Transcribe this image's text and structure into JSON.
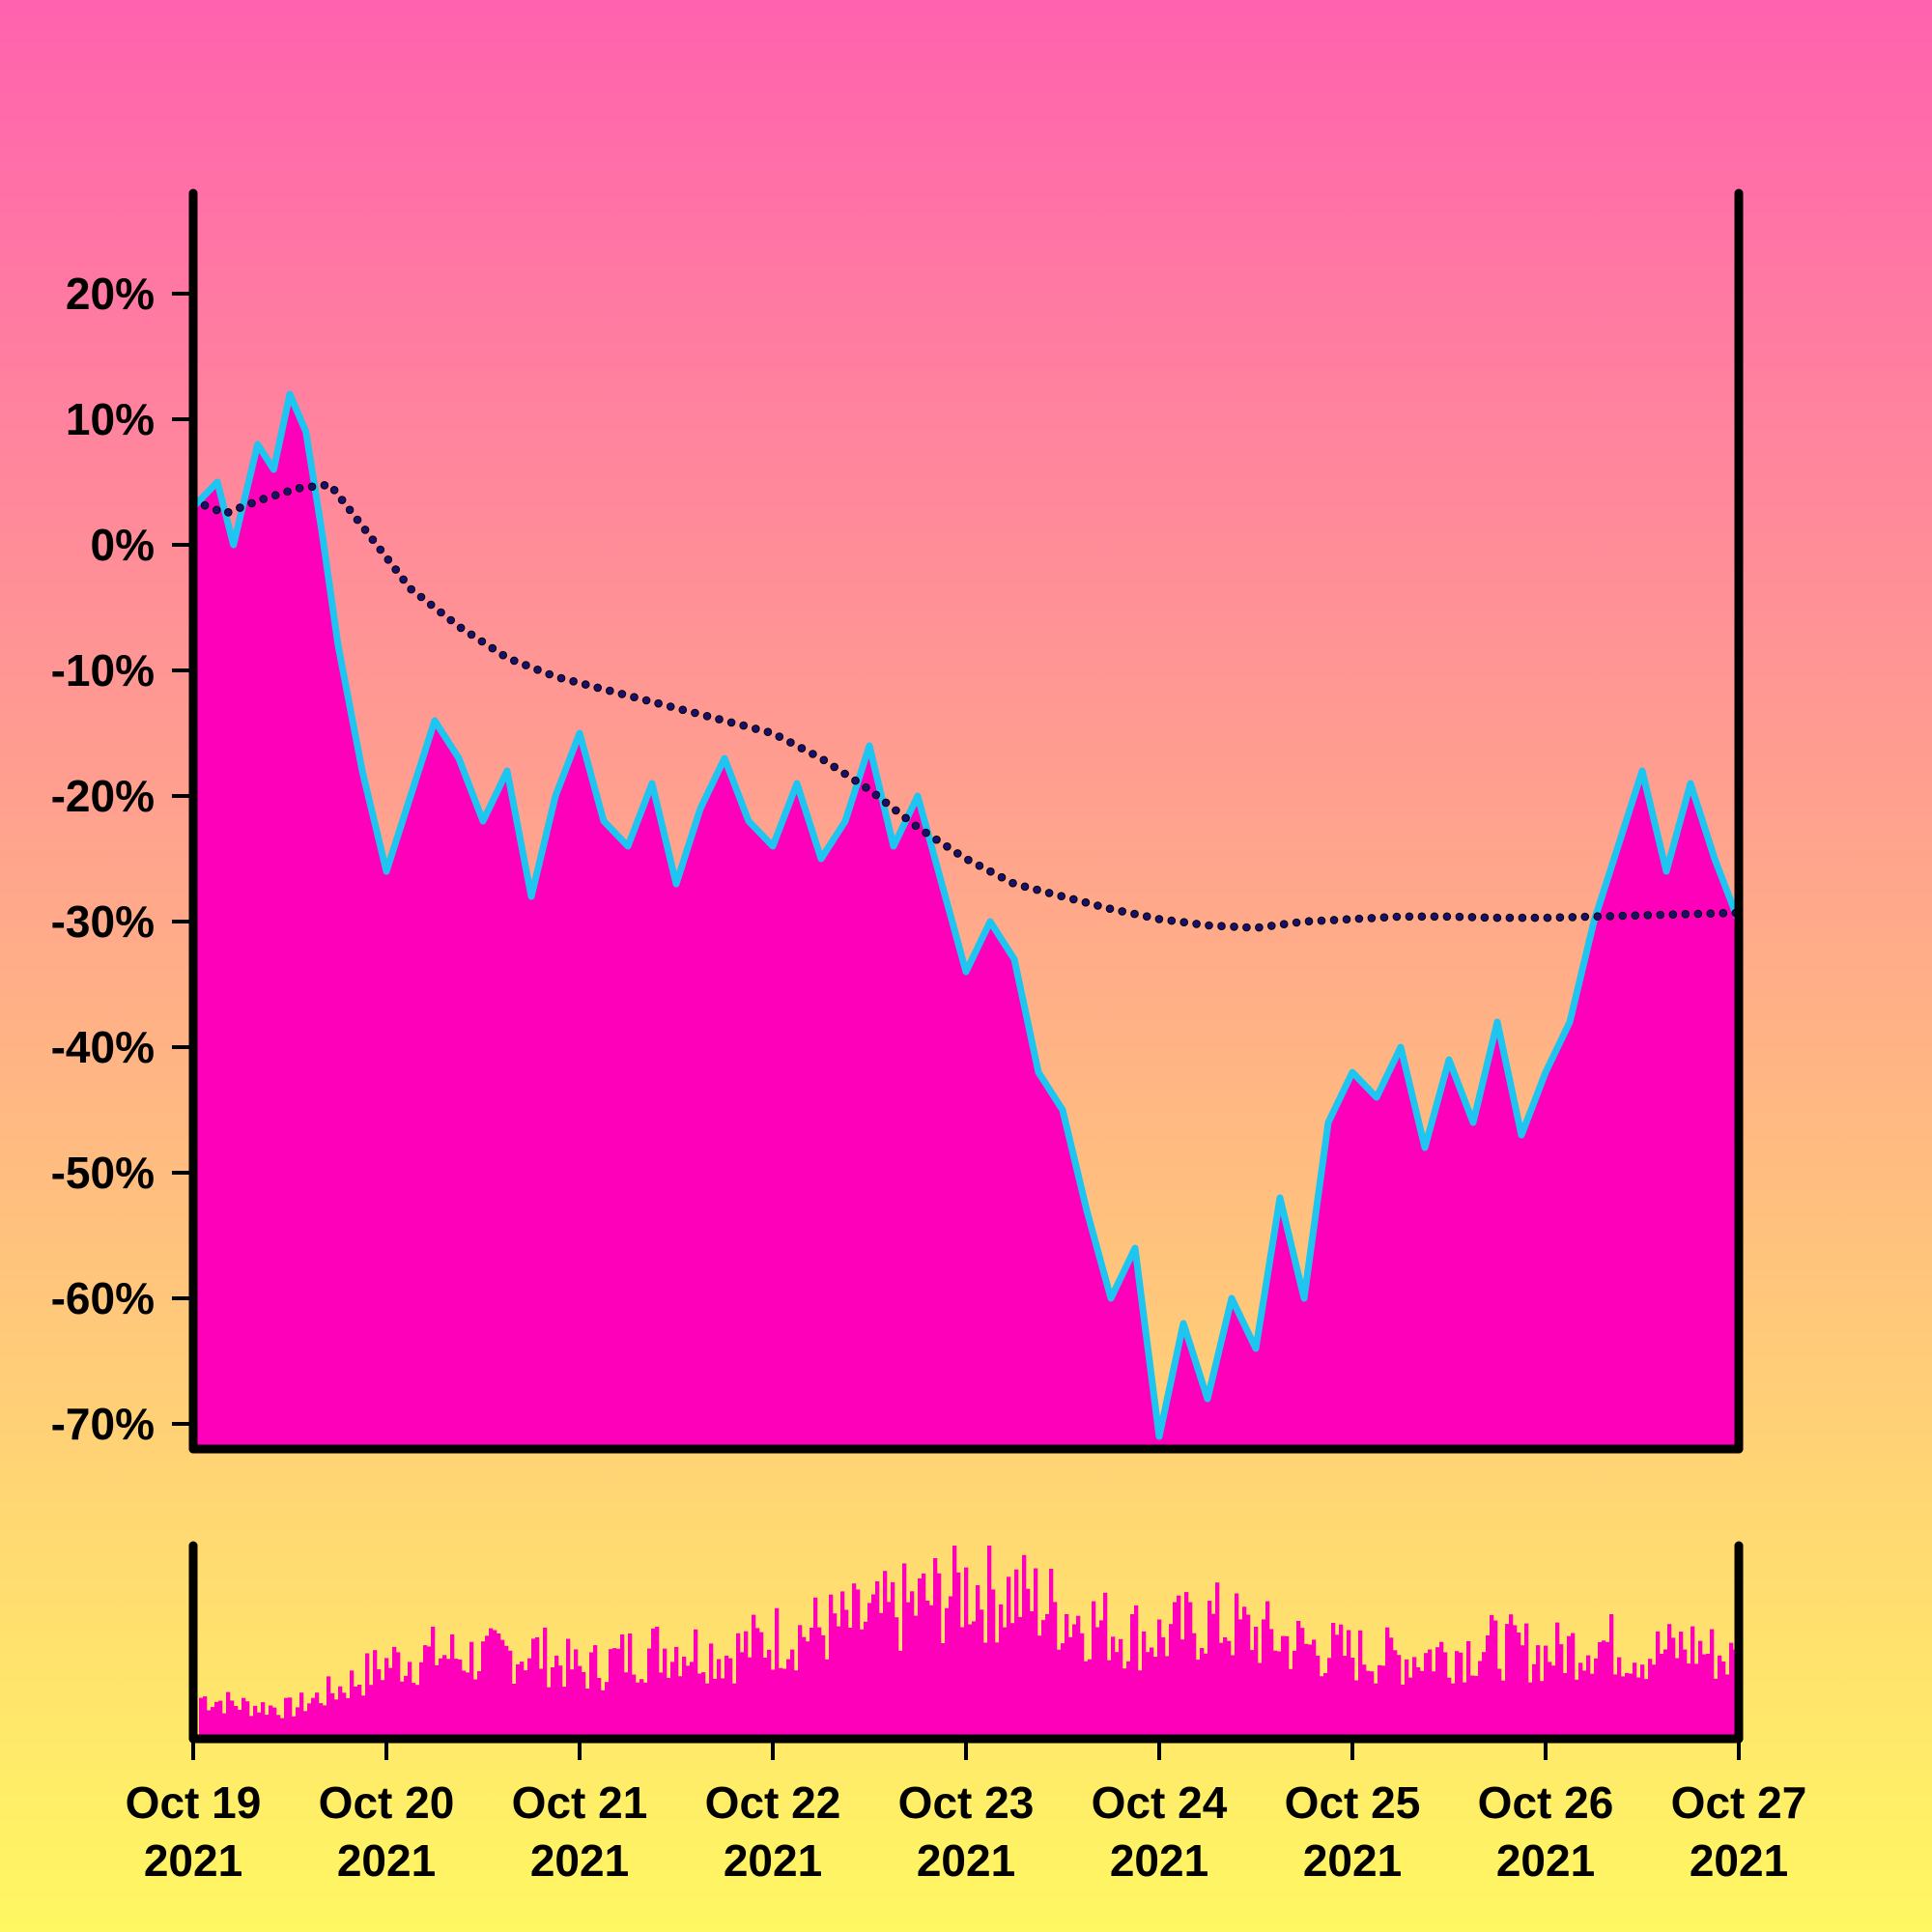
{
  "chart_data": {
    "type": "area",
    "title": "",
    "xlabel": "",
    "ylabel": "",
    "y_unit": "%",
    "ylim": [
      -72,
      28
    ],
    "yticks": [
      {
        "value": 20,
        "label": "20%"
      },
      {
        "value": 10,
        "label": "10%"
      },
      {
        "value": 0,
        "label": "0%"
      },
      {
        "value": -10,
        "label": "-10%"
      },
      {
        "value": -20,
        "label": "-20%"
      },
      {
        "value": -30,
        "label": "-30%"
      },
      {
        "value": -40,
        "label": "-40%"
      },
      {
        "value": -50,
        "label": "-50%"
      },
      {
        "value": -60,
        "label": "-60%"
      },
      {
        "value": -70,
        "label": "-70%"
      }
    ],
    "xlim": [
      "2021-10-19",
      "2021-10-27"
    ],
    "xticks": [
      {
        "date": "2021-10-19",
        "line1": "Oct 19",
        "line2": "2021"
      },
      {
        "date": "2021-10-20",
        "line1": "Oct 20",
        "line2": "2021"
      },
      {
        "date": "2021-10-21",
        "line1": "Oct 21",
        "line2": "2021"
      },
      {
        "date": "2021-10-22",
        "line1": "Oct 22",
        "line2": "2021"
      },
      {
        "date": "2021-10-23",
        "line1": "Oct 23",
        "line2": "2021"
      },
      {
        "date": "2021-10-24",
        "line1": "Oct 24",
        "line2": "2021"
      },
      {
        "date": "2021-10-25",
        "line1": "Oct 25",
        "line2": "2021"
      },
      {
        "date": "2021-10-26",
        "line1": "Oct 26",
        "line2": "2021"
      },
      {
        "date": "2021-10-27",
        "line1": "Oct 27",
        "line2": "2021"
      }
    ],
    "grid": false,
    "legend": "none",
    "colors": {
      "background_top": "#ff62ae",
      "background_bottom": "#fff862",
      "area_fill": "#ff00ba",
      "line": "#1ec5f0",
      "trend_dots": "#1a0f6e",
      "axis": "#000000"
    },
    "series": [
      {
        "type": "area",
        "x": [
          "2021-10-19 00:00",
          "2021-10-19 03:00",
          "2021-10-19 05:00",
          "2021-10-19 08:00",
          "2021-10-19 10:00",
          "2021-10-19 12:00",
          "2021-10-19 14:00",
          "2021-10-19 16:00",
          "2021-10-19 18:00",
          "2021-10-19 21:00",
          "2021-10-20 00:00",
          "2021-10-20 03:00",
          "2021-10-20 06:00",
          "2021-10-20 09:00",
          "2021-10-20 12:00",
          "2021-10-20 15:00",
          "2021-10-20 18:00",
          "2021-10-20 21:00",
          "2021-10-21 00:00",
          "2021-10-21 03:00",
          "2021-10-21 06:00",
          "2021-10-21 09:00",
          "2021-10-21 12:00",
          "2021-10-21 15:00",
          "2021-10-21 18:00",
          "2021-10-21 21:00",
          "2021-10-22 00:00",
          "2021-10-22 03:00",
          "2021-10-22 06:00",
          "2021-10-22 09:00",
          "2021-10-22 12:00",
          "2021-10-22 15:00",
          "2021-10-22 18:00",
          "2021-10-22 21:00",
          "2021-10-23 00:00",
          "2021-10-23 03:00",
          "2021-10-23 06:00",
          "2021-10-23 09:00",
          "2021-10-23 12:00",
          "2021-10-23 15:00",
          "2021-10-23 18:00",
          "2021-10-23 21:00",
          "2021-10-24 00:00",
          "2021-10-24 03:00",
          "2021-10-24 06:00",
          "2021-10-24 09:00",
          "2021-10-24 12:00",
          "2021-10-24 15:00",
          "2021-10-24 18:00",
          "2021-10-24 21:00",
          "2021-10-25 00:00",
          "2021-10-25 03:00",
          "2021-10-25 06:00",
          "2021-10-25 09:00",
          "2021-10-25 12:00",
          "2021-10-25 15:00",
          "2021-10-25 18:00",
          "2021-10-25 21:00",
          "2021-10-26 00:00",
          "2021-10-26 03:00",
          "2021-10-26 06:00",
          "2021-10-26 09:00",
          "2021-10-26 12:00",
          "2021-10-26 15:00",
          "2021-10-26 18:00",
          "2021-10-26 21:00",
          "2021-10-27 00:00"
        ],
        "values": [
          3,
          5,
          0,
          8,
          6,
          12,
          9,
          1,
          -8,
          -18,
          -26,
          -20,
          -14,
          -17,
          -22,
          -18,
          -28,
          -20,
          -15,
          -22,
          -24,
          -19,
          -27,
          -21,
          -17,
          -22,
          -24,
          -19,
          -25,
          -22,
          -16,
          -24,
          -20,
          -27,
          -34,
          -30,
          -33,
          -42,
          -45,
          -53,
          -60,
          -56,
          -71,
          -62,
          -68,
          -60,
          -64,
          -52,
          -60,
          -46,
          -42,
          -44,
          -40,
          -48,
          -41,
          -46,
          -38,
          -47,
          -42,
          -38,
          -30,
          -24,
          -18,
          -26,
          -19,
          -25,
          -30
        ]
      },
      {
        "type": "dotted-line",
        "x": [
          "2021-10-19 00:00",
          "2021-10-19 04:00",
          "2021-10-19 08:00",
          "2021-10-19 13:00",
          "2021-10-19 17:00",
          "2021-10-19 21:00",
          "2021-10-20 03:00",
          "2021-10-20 09:00",
          "2021-10-20 15:00",
          "2021-10-20 21:00",
          "2021-10-21 06:00",
          "2021-10-21 12:00",
          "2021-10-21 18:00",
          "2021-10-22 00:00",
          "2021-10-22 06:00",
          "2021-10-22 12:00",
          "2021-10-22 18:00",
          "2021-10-23 00:00",
          "2021-10-23 06:00",
          "2021-10-23 12:00",
          "2021-10-23 18:00",
          "2021-10-24 00:00",
          "2021-10-24 06:00",
          "2021-10-24 12:00",
          "2021-10-24 18:00",
          "2021-10-25 00:00",
          "2021-10-25 06:00",
          "2021-10-25 12:00",
          "2021-10-25 18:00",
          "2021-10-26 00:00",
          "2021-10-26 06:00",
          "2021-10-26 12:00",
          "2021-10-26 18:00",
          "2021-10-27 00:00"
        ],
        "values": [
          3.5,
          2.5,
          3.5,
          4.5,
          4.8,
          1.5,
          -3.5,
          -6.5,
          -9,
          -10.5,
          -12,
          -13,
          -14,
          -15,
          -17,
          -19.5,
          -22.5,
          -25,
          -27,
          -28,
          -29,
          -29.8,
          -30.3,
          -30.5,
          -30,
          -29.8,
          -29.6,
          -29.6,
          -29.7,
          -29.7,
          -29.6,
          -29.5,
          -29.4,
          -29.3
        ]
      },
      {
        "type": "volume-bars",
        "relative": true,
        "x": [
          "2021-10-19 00:00",
          "2021-10-19 06:00",
          "2021-10-19 12:00",
          "2021-10-19 18:00",
          "2021-10-20 00:00",
          "2021-10-20 06:00",
          "2021-10-20 12:00",
          "2021-10-20 18:00",
          "2021-10-21 00:00",
          "2021-10-21 06:00",
          "2021-10-21 12:00",
          "2021-10-21 18:00",
          "2021-10-22 00:00",
          "2021-10-22 06:00",
          "2021-10-22 12:00",
          "2021-10-22 18:00",
          "2021-10-23 00:00",
          "2021-10-23 06:00",
          "2021-10-23 12:00",
          "2021-10-23 18:00",
          "2021-10-24 00:00",
          "2021-10-24 06:00",
          "2021-10-24 12:00",
          "2021-10-24 18:00",
          "2021-10-25 00:00",
          "2021-10-25 06:00",
          "2021-10-25 12:00",
          "2021-10-25 18:00",
          "2021-10-26 00:00",
          "2021-10-26 06:00",
          "2021-10-26 12:00",
          "2021-10-26 18:00",
          "2021-10-27 00:00"
        ],
        "values": [
          0.25,
          0.2,
          0.18,
          0.3,
          0.45,
          0.5,
          0.48,
          0.52,
          0.4,
          0.5,
          0.55,
          0.5,
          0.6,
          0.65,
          0.7,
          0.8,
          0.9,
          0.85,
          0.75,
          0.65,
          0.6,
          0.7,
          0.62,
          0.55,
          0.5,
          0.48,
          0.52,
          0.55,
          0.5,
          0.58,
          0.5,
          0.55,
          0.45
        ]
      }
    ]
  }
}
